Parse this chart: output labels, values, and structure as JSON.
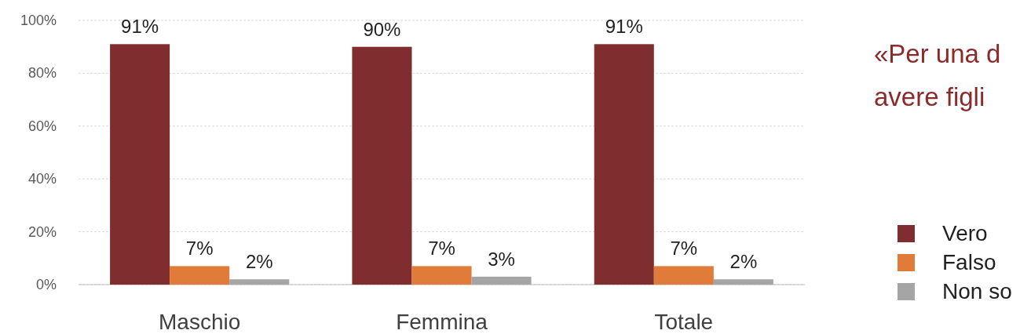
{
  "chart_data": {
    "type": "bar",
    "title": "«Per una d\navere figli",
    "categories": [
      "Maschio",
      "Femmina",
      "Totale"
    ],
    "series": [
      {
        "name": "Vero",
        "color": "#7f2d2f",
        "values": [
          91,
          90,
          91
        ],
        "value_labels": [
          "91%",
          "90%",
          "91%"
        ]
      },
      {
        "name": "Falso",
        "color": "#e07b39",
        "values": [
          7,
          7,
          7
        ],
        "value_labels": [
          "7%",
          "7%",
          "7%"
        ]
      },
      {
        "name": "Non so",
        "color": "#a5a5a5",
        "values": [
          2,
          3,
          2
        ],
        "value_labels": [
          "2%",
          "3%",
          "2%"
        ]
      }
    ],
    "ylim": [
      0,
      100
    ],
    "yticks": [
      {
        "value": 0,
        "label": "0%"
      },
      {
        "value": 20,
        "label": "20%"
      },
      {
        "value": 40,
        "label": "40%"
      },
      {
        "value": 60,
        "label": "60%"
      },
      {
        "value": 80,
        "label": "80%"
      },
      {
        "value": 100,
        "label": "100%"
      }
    ],
    "grid": "y",
    "legend": "right"
  }
}
